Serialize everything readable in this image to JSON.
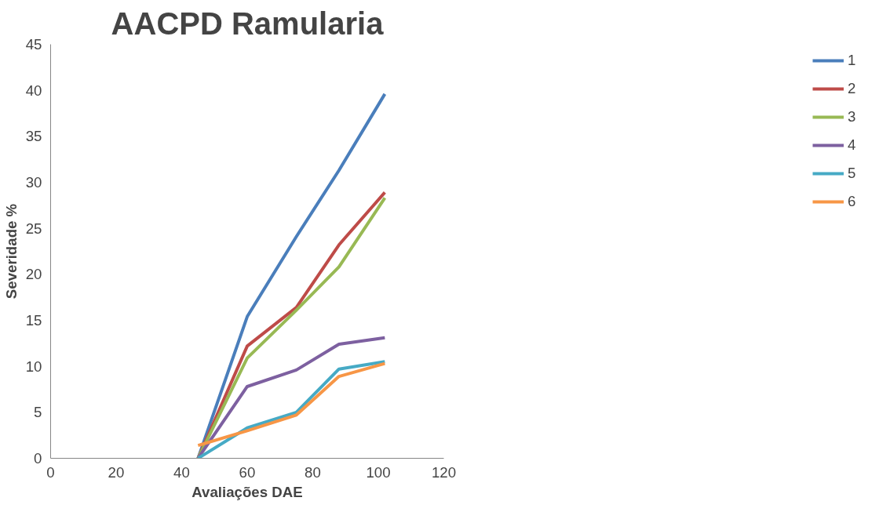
{
  "chart_data": {
    "type": "line",
    "title": "AACPD Ramularia",
    "xlabel": "Avaliações DAE",
    "ylabel": "Severidade %",
    "x": [
      45,
      60,
      75,
      88,
      102
    ],
    "series": [
      {
        "name": "1",
        "color": "#4a7ebb",
        "values": [
          0,
          15.4,
          24.1,
          31.3,
          39.6
        ]
      },
      {
        "name": "2",
        "color": "#be4b48",
        "values": [
          0,
          12.2,
          16.4,
          23.2,
          28.9
        ]
      },
      {
        "name": "3",
        "color": "#98b954",
        "values": [
          0,
          10.9,
          16.1,
          20.8,
          28.3
        ]
      },
      {
        "name": "4",
        "color": "#7d60a0",
        "values": [
          0,
          7.8,
          9.6,
          12.4,
          13.1
        ]
      },
      {
        "name": "5",
        "color": "#46aac5",
        "values": [
          0,
          3.3,
          5.0,
          9.7,
          10.5
        ]
      },
      {
        "name": "6",
        "color": "#f79646",
        "values": [
          1.4,
          3.0,
          4.7,
          8.9,
          10.3
        ]
      }
    ],
    "xlim": [
      0,
      120
    ],
    "xticks": [
      0,
      20,
      40,
      60,
      80,
      100,
      120
    ],
    "ylim": [
      0,
      45
    ],
    "yticks": [
      0,
      5,
      10,
      15,
      20,
      25,
      30,
      35,
      40,
      45
    ],
    "grid": false,
    "legend": "right",
    "marker": "none",
    "line_style": "solid"
  }
}
